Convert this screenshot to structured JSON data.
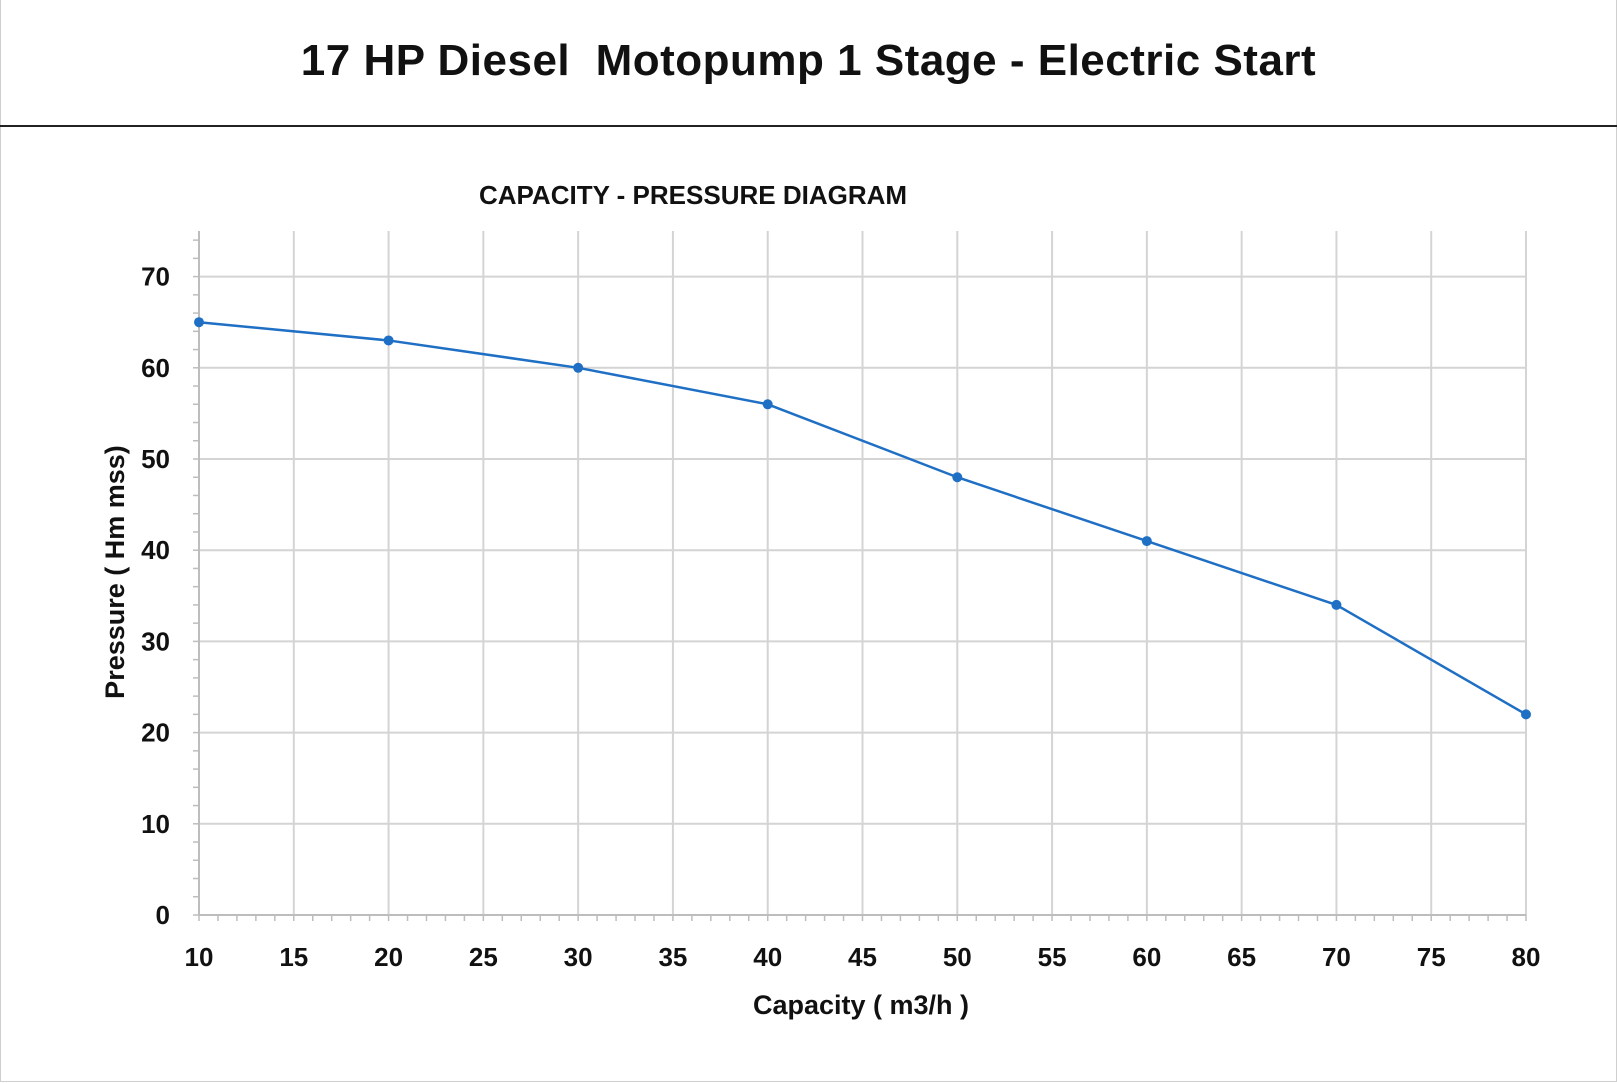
{
  "page": {
    "title": "17 HP Diesel  Motopump 1 Stage - Electric Start"
  },
  "chart_data": {
    "type": "line",
    "title": "CAPACITY - PRESSURE DIAGRAM",
    "xlabel": "Capacity ( m3/h )",
    "ylabel": "Pressure ( Hm mss)",
    "xlim": [
      10,
      80
    ],
    "ylim": [
      0,
      75
    ],
    "x_ticks": [
      10,
      15,
      20,
      25,
      30,
      35,
      40,
      45,
      50,
      55,
      60,
      65,
      70,
      75,
      80
    ],
    "y_ticks": [
      0,
      10,
      20,
      30,
      40,
      50,
      60,
      70
    ],
    "grid": true,
    "legend": "none",
    "series": [
      {
        "color": "#1f6fc5",
        "x": [
          10,
          20,
          30,
          40,
          50,
          60,
          70,
          80
        ],
        "y": [
          65,
          63,
          60,
          56,
          48,
          41,
          34,
          22
        ]
      }
    ]
  }
}
